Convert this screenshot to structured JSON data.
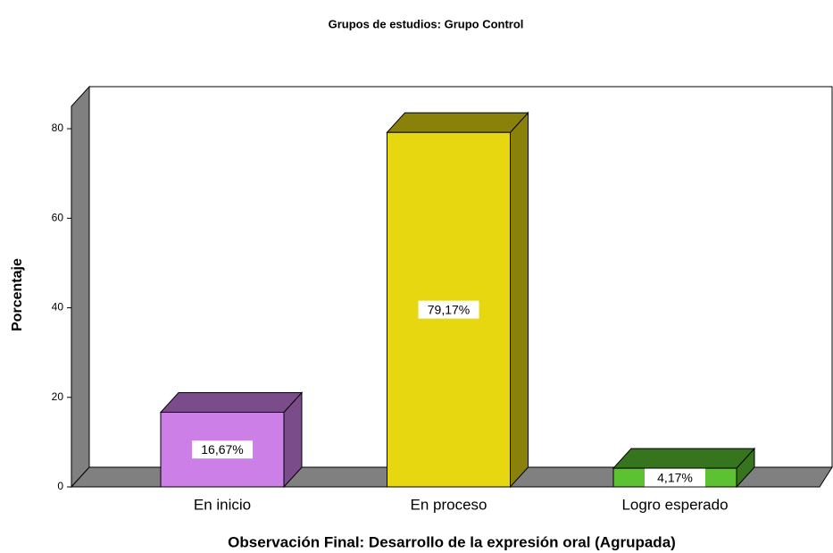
{
  "chart_data": {
    "type": "bar3d",
    "title": "Grupos de estudios: Grupo Control",
    "x_label": "Observación Final: Desarrollo de la expresión oral (Agrupada)",
    "y_label": "Porcentaje",
    "categories": [
      "En inicio",
      "En proceso",
      "Logro esperado"
    ],
    "values": [
      16.67,
      79.17,
      4.17
    ],
    "value_labels": [
      "16,67%",
      "79,17%",
      "4,17%"
    ],
    "colors": [
      "#cc7fe6",
      "#e6d710",
      "#5cc232"
    ],
    "ylim": [
      0,
      85
    ],
    "yticks": [
      0,
      20,
      40,
      60,
      80
    ]
  }
}
